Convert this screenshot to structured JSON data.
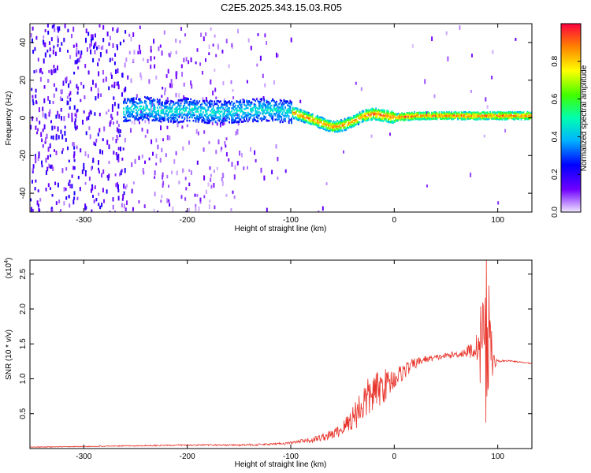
{
  "title": "C2E5.2025.343.15.03.R05",
  "chart_data": [
    {
      "type": "heatmap",
      "name": "spectrogram",
      "xlabel": "Height of straight line (km)",
      "ylabel": "Frequency (Hz)",
      "xlim": [
        -352,
        133
      ],
      "ylim": [
        -50,
        50
      ],
      "xticks": [
        -300,
        -200,
        -100,
        0,
        100
      ],
      "yticks": [
        -40,
        -20,
        0,
        20,
        40
      ],
      "colorbar": {
        "label": "Normalized spectral amplitude",
        "range": [
          0,
          1
        ],
        "ticks": [
          "0.0",
          "0.2",
          "0.4",
          "0.6",
          "0.8"
        ]
      },
      "ridge_frequency_hz": {
        "x": [
          -260,
          -240,
          -220,
          -200,
          -180,
          -160,
          -140,
          -120,
          -100,
          -90,
          -80,
          -70,
          -60,
          -50,
          -40,
          -30,
          -20,
          -10,
          0,
          20,
          40,
          60,
          80,
          90,
          100,
          133
        ],
        "y": [
          4,
          5,
          3,
          4,
          3,
          3,
          4,
          4,
          3,
          1,
          -1,
          -3,
          -5,
          -4,
          -2,
          1,
          2,
          1,
          0,
          1,
          1,
          1,
          1,
          1,
          1,
          1
        ]
      }
    },
    {
      "type": "line",
      "name": "snr",
      "xlabel": "Height of straight line (km)",
      "ylabel": "SNR (10 * v/v)",
      "multiplier": "(x10",
      "multiplier_exp": "4",
      "xlim": [
        -352,
        133
      ],
      "ylim": [
        0,
        2.7
      ],
      "xticks": [
        -300,
        -200,
        -100,
        0,
        100
      ],
      "yticks": [
        "0.5",
        "1.0",
        "1.5",
        "2.0",
        "2.5"
      ],
      "series": [
        {
          "name": "SNR",
          "color": "#e8332a",
          "x": [
            -352,
            -300,
            -250,
            -200,
            -150,
            -120,
            -100,
            -80,
            -60,
            -50,
            -40,
            -30,
            -20,
            -10,
            0,
            10,
            20,
            30,
            40,
            50,
            60,
            70,
            80,
            85,
            90,
            95,
            100,
            110,
            120,
            133
          ],
          "y": [
            0.02,
            0.03,
            0.04,
            0.05,
            0.05,
            0.06,
            0.08,
            0.12,
            0.2,
            0.28,
            0.45,
            0.65,
            0.8,
            0.9,
            1.0,
            1.12,
            1.22,
            1.28,
            1.3,
            1.33,
            1.35,
            1.38,
            1.45,
            1.7,
            1.6,
            1.25,
            1.25,
            1.26,
            1.24,
            1.22
          ],
          "noise": [
            0.005,
            0.006,
            0.008,
            0.01,
            0.012,
            0.015,
            0.02,
            0.04,
            0.07,
            0.1,
            0.2,
            0.3,
            0.28,
            0.25,
            0.15,
            0.12,
            0.08,
            0.05,
            0.04,
            0.04,
            0.05,
            0.08,
            0.2,
            0.45,
            0.8,
            0.15,
            0.02,
            0.01,
            0.01,
            0.01
          ]
        }
      ]
    }
  ]
}
